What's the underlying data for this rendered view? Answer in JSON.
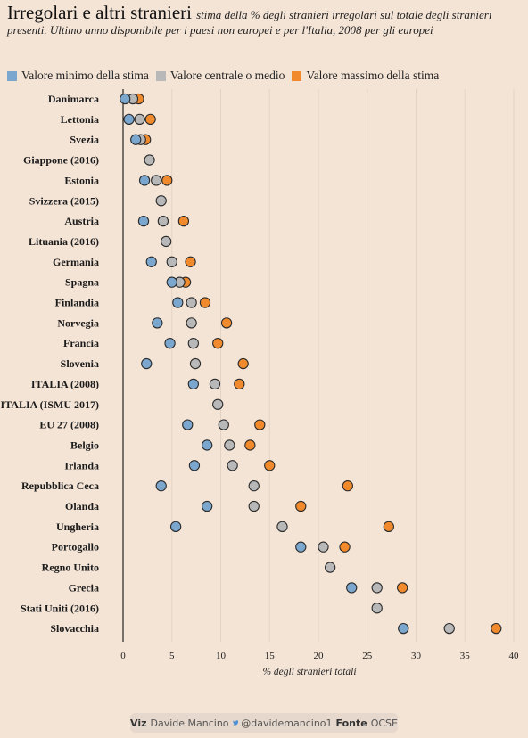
{
  "header": {
    "title": "Irregolari e altri stranieri",
    "subtitle": "stima della % degli stranieri irregolari sul totale degli stranieri presenti. Ultimo anno disponibile per i paesi non europei e per l'Italia, 2008 per gli europei"
  },
  "legend": {
    "min_label": "Valore minimo della stima",
    "mid_label": "Valore centrale o medio",
    "max_label": "Valore massimo della stima"
  },
  "colors": {
    "min": "#7ba7cf",
    "mid": "#b8b8b8",
    "max": "#f08a2c",
    "background": "#f4e4d6",
    "grid": "#e3d3c5"
  },
  "footer": {
    "viz_label": "Viz",
    "viz_author": "Davide Mancino",
    "twitter_icon": "twitter-bird-icon",
    "handle": "@davidemancino1",
    "source_label": "Fonte",
    "source": "OCSE"
  },
  "chart_data": {
    "type": "scatter",
    "xlabel": "% degli stranieri totali",
    "xlim": [
      0,
      40
    ],
    "xticks": [
      0,
      5,
      10,
      15,
      20,
      25,
      30,
      35,
      40
    ],
    "grid": "vertical",
    "categories": [
      "Danimarca",
      "Lettonia",
      "Svezia",
      "Giappone (2016)",
      "Estonia",
      "Svizzera (2015)",
      "Austria",
      "Lituania (2016)",
      "Germania",
      "Spagna",
      "Finlandia",
      "Norvegia",
      "Francia",
      "Slovenia",
      "ITALIA (2008)",
      "ITALIA (ISMU 2017)",
      "EU 27 (2008)",
      "Belgio",
      "Irlanda",
      "Repubblica Ceca",
      "Olanda",
      "Ungheria",
      "Portogallo",
      "Regno Unito",
      "Grecia",
      "Stati Uniti (2016)",
      "Slovacchia"
    ],
    "series": [
      {
        "name": "Valore minimo della stima",
        "values": [
          0.2,
          0.6,
          1.3,
          null,
          2.2,
          null,
          2.1,
          null,
          2.9,
          5.0,
          5.6,
          3.5,
          4.8,
          2.4,
          7.2,
          null,
          6.6,
          8.6,
          7.3,
          3.9,
          8.6,
          5.4,
          18.2,
          null,
          23.4,
          null,
          28.7
        ]
      },
      {
        "name": "Valore centrale o medio",
        "values": [
          1.0,
          1.7,
          1.8,
          2.7,
          3.4,
          3.9,
          4.1,
          4.4,
          5.0,
          5.8,
          7.0,
          7.0,
          7.2,
          7.4,
          9.4,
          9.7,
          10.3,
          10.9,
          11.2,
          13.4,
          13.4,
          16.3,
          20.5,
          21.2,
          26.0,
          26.0,
          33.4
        ]
      },
      {
        "name": "Valore massimo della stima",
        "values": [
          1.6,
          2.8,
          2.3,
          null,
          4.5,
          null,
          6.2,
          null,
          6.9,
          6.4,
          8.4,
          10.6,
          9.7,
          12.3,
          11.9,
          null,
          14.0,
          13.0,
          15.0,
          23.0,
          18.2,
          27.2,
          22.7,
          null,
          28.6,
          null,
          38.2
        ]
      }
    ]
  }
}
